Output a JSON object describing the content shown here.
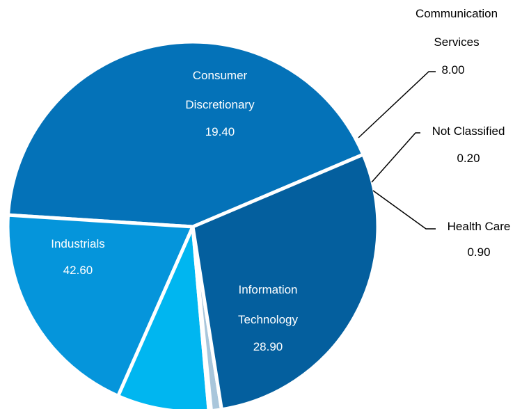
{
  "chart_data": {
    "type": "pie",
    "start_angle_deg": -23,
    "direction": "counterclockwise",
    "slices": [
      {
        "name": "Industrials",
        "value": 42.6,
        "value_label": "42.60",
        "color": "#0472B8"
      },
      {
        "name": "Consumer Discretionary",
        "value": 19.4,
        "value_label": "19.40",
        "color": "#0595DB"
      },
      {
        "name": "Communication Services",
        "value": 8.0,
        "value_label": "8.00",
        "color": "#00B6F0"
      },
      {
        "name": "Not Classified",
        "value": 0.2,
        "value_label": "0.20",
        "color": "#D8E4EE"
      },
      {
        "name": "Health Care",
        "value": 0.9,
        "value_label": "0.90",
        "color": "#A9C6DB"
      },
      {
        "name": "Information Technology",
        "value": 28.9,
        "value_label": "28.90",
        "color": "#045F9E"
      }
    ],
    "label_lines": {
      "consumer_discretionary": [
        "Consumer",
        "Discretionary"
      ],
      "information_technology": [
        "Information",
        "Technology"
      ],
      "communication_services": [
        "Communication",
        "Services"
      ]
    }
  }
}
